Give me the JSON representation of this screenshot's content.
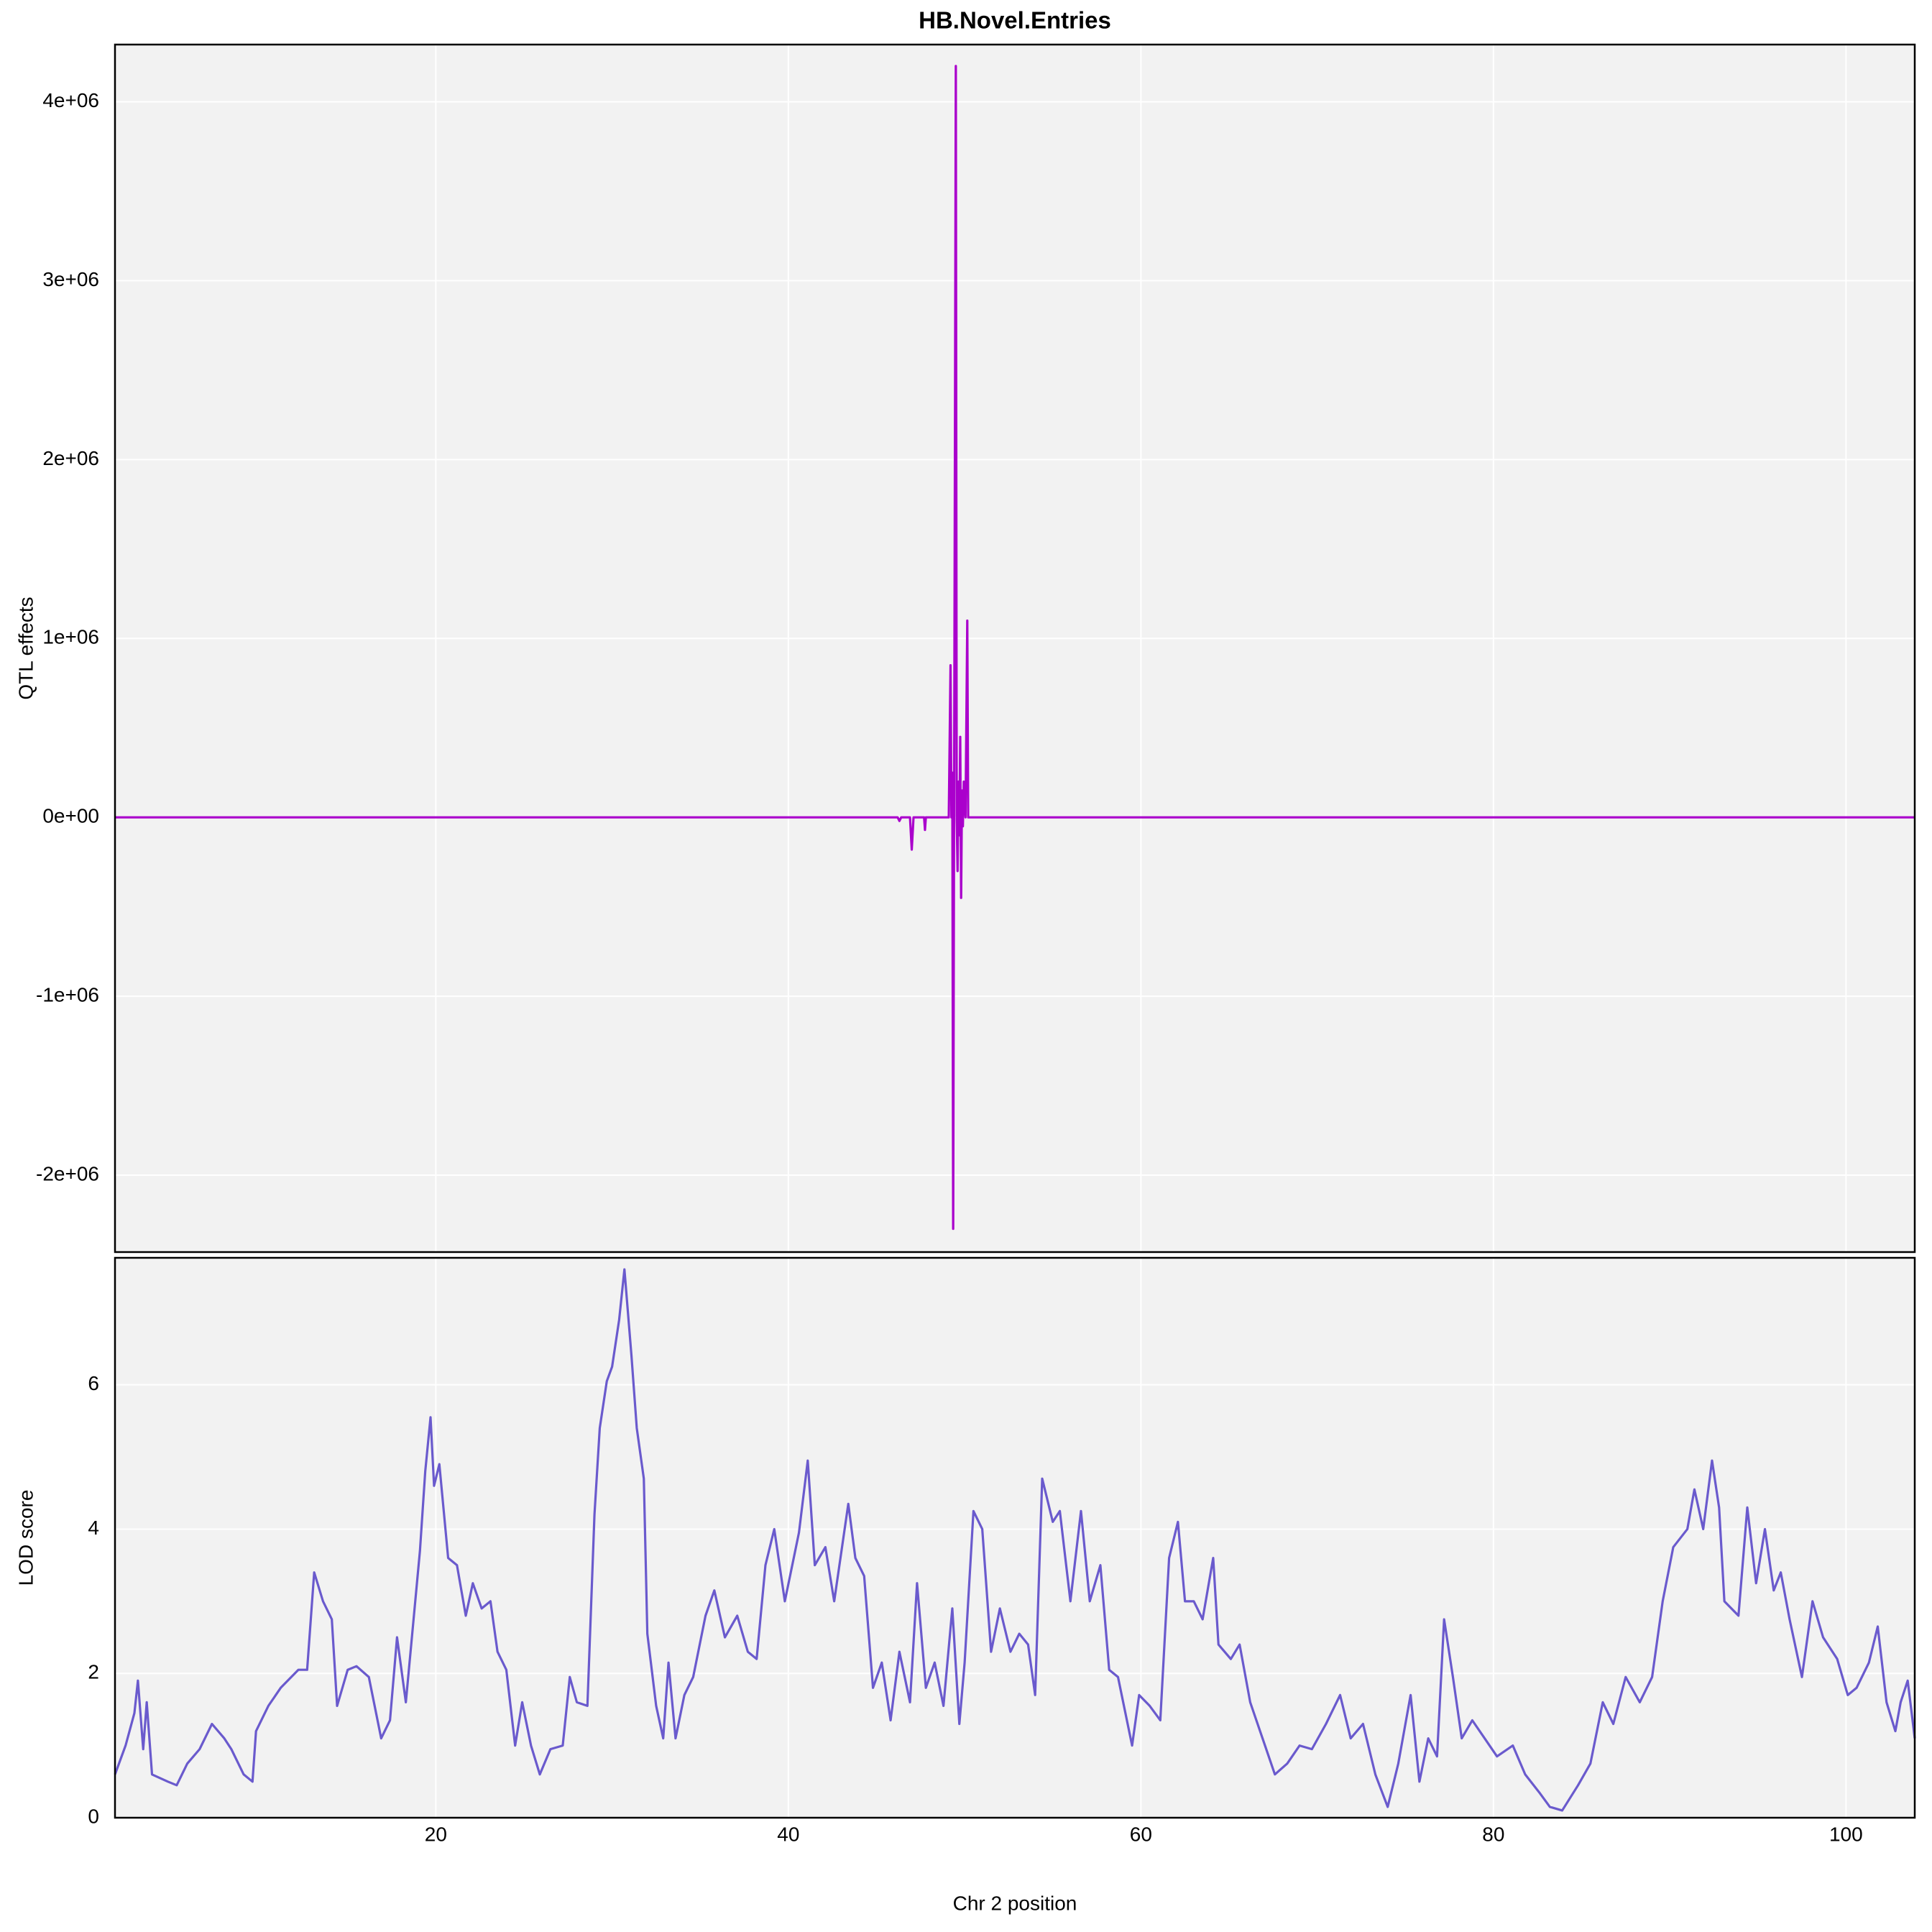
{
  "chart_data": [
    {
      "type": "line",
      "title": "HB.Novel.Entries",
      "ylabel": "QTL effects",
      "color": "#aa00cc",
      "grid": true,
      "xlim": [
        1.8,
        103.9
      ],
      "xticks": [
        20,
        40,
        60,
        80,
        100
      ],
      "ylim": [
        -2430000,
        4320000
      ],
      "yticks": [
        {
          "value": -2000000,
          "label": "-2e+06"
        },
        {
          "value": -1000000,
          "label": "-1e+06"
        },
        {
          "value": 0,
          "label": "0e+00"
        },
        {
          "value": 1000000,
          "label": "1e+06"
        },
        {
          "value": 2000000,
          "label": "2e+06"
        },
        {
          "value": 3000000,
          "label": "3e+06"
        },
        {
          "value": 4000000,
          "label": "4e+06"
        }
      ],
      "x": [
        1.8,
        46.2,
        46.3,
        46.4,
        46.9,
        47.0,
        47.1,
        47.7,
        47.75,
        47.8,
        49.1,
        49.2,
        49.25,
        49.3,
        49.35,
        49.4,
        49.5,
        49.55,
        49.6,
        49.65,
        49.7,
        49.75,
        49.8,
        49.85,
        49.9,
        49.95,
        50.05,
        50.15,
        50.2,
        103.9
      ],
      "values": [
        0,
        0,
        -20000,
        0,
        0,
        -180000,
        0,
        0,
        -70000,
        0,
        0,
        850000,
        0,
        250000,
        -2300000,
        0,
        4200000,
        0,
        -300000,
        200000,
        -100000,
        450000,
        -450000,
        150000,
        -50000,
        200000,
        0,
        1100000,
        0,
        0
      ]
    },
    {
      "type": "line",
      "ylabel": "LOD score",
      "xlabel": "Chr 2 position",
      "color": "#6a5acd",
      "grid": true,
      "xlim": [
        1.8,
        103.9
      ],
      "xticks": [
        20,
        40,
        60,
        80,
        100
      ],
      "ylim": [
        0,
        7.76
      ],
      "yticks": [
        0,
        2,
        4,
        6
      ],
      "x": [
        1.8,
        2.4,
        2.9,
        3.1,
        3.4,
        3.6,
        3.9,
        4.8,
        5.3,
        5.9,
        6.6,
        7.3,
        8.0,
        8.4,
        9.1,
        9.6,
        9.8,
        10.5,
        11.2,
        12.2,
        12.7,
        13.1,
        13.6,
        14.1,
        14.4,
        15.0,
        15.5,
        16.2,
        16.9,
        17.4,
        17.8,
        18.3,
        18.7,
        19.1,
        19.4,
        19.7,
        19.9,
        20.2,
        20.7,
        21.2,
        21.7,
        22.1,
        22.6,
        23.1,
        23.5,
        24.0,
        24.5,
        24.9,
        25.4,
        25.9,
        26.5,
        27.2,
        27.6,
        28.0,
        28.6,
        29.0,
        29.3,
        29.7,
        30.0,
        30.4,
        30.7,
        31.1,
        31.4,
        31.8,
        32.0,
        32.5,
        32.9,
        33.2,
        33.6,
        34.1,
        34.6,
        35.3,
        35.8,
        36.4,
        37.1,
        37.7,
        38.2,
        38.7,
        39.2,
        39.8,
        40.6,
        41.1,
        41.5,
        42.1,
        42.6,
        43.4,
        43.8,
        44.3,
        44.8,
        45.3,
        45.8,
        46.3,
        46.9,
        47.3,
        47.8,
        48.3,
        48.8,
        49.3,
        49.7,
        50.0,
        50.5,
        51.0,
        51.5,
        52.0,
        52.6,
        53.1,
        53.6,
        54.0,
        54.4,
        55.0,
        55.4,
        56.0,
        56.6,
        57.1,
        57.7,
        58.2,
        58.7,
        59.5,
        59.9,
        60.5,
        61.1,
        61.6,
        62.1,
        62.5,
        63.0,
        63.5,
        64.1,
        64.4,
        65.1,
        65.6,
        66.2,
        66.9,
        67.6,
        68.3,
        69.0,
        69.7,
        70.5,
        71.3,
        71.9,
        72.6,
        73.3,
        74.0,
        74.6,
        75.3,
        75.8,
        76.3,
        76.8,
        77.2,
        77.7,
        78.2,
        78.8,
        79.5,
        80.2,
        81.1,
        81.8,
        82.6,
        83.2,
        83.9,
        84.8,
        85.5,
        86.2,
        86.8,
        87.5,
        88.3,
        89.0,
        89.6,
        90.2,
        91.0,
        91.4,
        91.9,
        92.4,
        92.8,
        93.1,
        93.9,
        94.4,
        94.9,
        95.4,
        95.9,
        96.3,
        96.8,
        97.5,
        98.1,
        98.7,
        99.5,
        100.1,
        100.6,
        101.3,
        101.8,
        102.3,
        102.8,
        103.1,
        103.5,
        103.9
      ],
      "values": [
        0.6,
        1.0,
        1.45,
        1.9,
        0.95,
        1.6,
        0.6,
        0.5,
        0.45,
        0.75,
        0.95,
        1.3,
        1.1,
        0.95,
        0.6,
        0.5,
        1.2,
        1.55,
        1.8,
        2.05,
        2.05,
        3.4,
        3.0,
        2.75,
        1.55,
        2.05,
        2.1,
        1.95,
        1.1,
        1.35,
        2.5,
        1.6,
        2.65,
        3.7,
        4.8,
        5.55,
        4.6,
        4.9,
        3.6,
        3.5,
        2.8,
        3.25,
        2.9,
        3.0,
        2.3,
        2.05,
        1.0,
        1.6,
        1.0,
        0.6,
        0.95,
        1.0,
        1.95,
        1.6,
        1.55,
        4.2,
        5.4,
        6.05,
        6.25,
        6.9,
        7.6,
        6.4,
        5.4,
        4.7,
        2.55,
        1.55,
        1.1,
        2.15,
        1.1,
        1.7,
        1.95,
        2.8,
        3.15,
        2.5,
        2.8,
        2.3,
        2.2,
        3.5,
        4.0,
        3.0,
        3.95,
        4.95,
        3.5,
        3.75,
        3.0,
        4.35,
        3.6,
        3.35,
        1.8,
        2.15,
        1.35,
        2.3,
        1.6,
        3.25,
        1.8,
        2.15,
        1.55,
        2.9,
        1.3,
        2.15,
        4.25,
        4.0,
        2.3,
        2.9,
        2.3,
        2.55,
        2.4,
        1.7,
        4.7,
        4.1,
        4.25,
        3.0,
        4.25,
        3.0,
        3.5,
        2.05,
        1.95,
        1.0,
        1.7,
        1.55,
        1.35,
        3.6,
        4.1,
        3.0,
        3.0,
        2.75,
        3.6,
        2.4,
        2.2,
        2.4,
        1.6,
        1.1,
        0.6,
        0.75,
        1.0,
        0.95,
        1.3,
        1.7,
        1.1,
        1.3,
        0.6,
        0.15,
        0.75,
        1.7,
        0.5,
        1.1,
        0.85,
        2.75,
        1.95,
        1.1,
        1.35,
        1.1,
        0.85,
        1.0,
        0.6,
        0.35,
        0.15,
        0.1,
        0.45,
        0.75,
        1.6,
        1.3,
        1.95,
        1.6,
        1.95,
        3.0,
        3.75,
        4.0,
        4.55,
        4.0,
        4.95,
        4.3,
        3.0,
        2.8,
        4.3,
        3.25,
        4.0,
        3.15,
        3.4,
        2.75,
        1.95,
        3.0,
        2.5,
        2.2,
        1.7,
        1.8,
        2.15,
        2.65,
        1.6,
        1.2,
        1.6,
        1.9,
        1.1
      ]
    }
  ]
}
